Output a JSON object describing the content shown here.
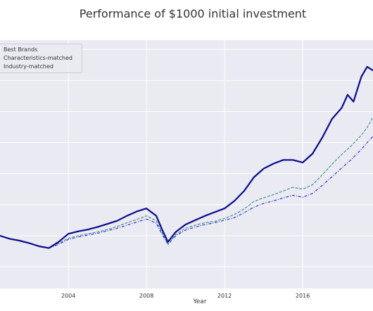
{
  "chart_data": {
    "type": "line",
    "title": "Performance of $1000 initial investment",
    "xlabel": "Year",
    "ylabel": "",
    "x_tick_labels": [
      "2004",
      "2008",
      "2012",
      "2016"
    ],
    "x_ticks": [
      2004,
      2008,
      2012,
      2016
    ],
    "xlim": [
      2000.5,
      2019.6
    ],
    "ylim": [
      150,
      4150
    ],
    "y_gridlines": [
      500,
      1000,
      1500,
      2000,
      2500,
      3000,
      3500,
      4000
    ],
    "grid": true,
    "legend_placement": "upper-left",
    "background_color": "#EAEAF2",
    "series": [
      {
        "name": "Best Brands",
        "color": "#0A0A8C",
        "style": "solid",
        "points": [
          [
            2000.5,
            1000
          ],
          [
            2001.0,
            950
          ],
          [
            2001.5,
            920
          ],
          [
            2002.0,
            880
          ],
          [
            2002.5,
            830
          ],
          [
            2003.0,
            800
          ],
          [
            2003.5,
            900
          ],
          [
            2004.0,
            1030
          ],
          [
            2004.5,
            1070
          ],
          [
            2005.0,
            1100
          ],
          [
            2005.5,
            1140
          ],
          [
            2006.0,
            1190
          ],
          [
            2006.5,
            1240
          ],
          [
            2007.0,
            1320
          ],
          [
            2007.5,
            1390
          ],
          [
            2008.0,
            1440
          ],
          [
            2008.5,
            1320
          ],
          [
            2008.8,
            1100
          ],
          [
            2009.1,
            900
          ],
          [
            2009.5,
            1060
          ],
          [
            2010.0,
            1180
          ],
          [
            2010.5,
            1250
          ],
          [
            2011.0,
            1320
          ],
          [
            2011.5,
            1380
          ],
          [
            2012.0,
            1440
          ],
          [
            2012.5,
            1560
          ],
          [
            2013.0,
            1720
          ],
          [
            2013.5,
            1940
          ],
          [
            2014.0,
            2080
          ],
          [
            2014.5,
            2160
          ],
          [
            2015.0,
            2220
          ],
          [
            2015.5,
            2220
          ],
          [
            2016.0,
            2180
          ],
          [
            2016.5,
            2320
          ],
          [
            2017.0,
            2580
          ],
          [
            2017.5,
            2880
          ],
          [
            2018.0,
            3060
          ],
          [
            2018.3,
            3270
          ],
          [
            2018.6,
            3160
          ],
          [
            2019.0,
            3560
          ],
          [
            2019.3,
            3720
          ],
          [
            2019.6,
            3660
          ]
        ]
      },
      {
        "name": "Characteristics-matched",
        "color": "#2F8A8A",
        "style": "dashed",
        "points": [
          [
            2000.5,
            1000
          ],
          [
            2001.0,
            950
          ],
          [
            2001.5,
            920
          ],
          [
            2002.0,
            880
          ],
          [
            2002.5,
            830
          ],
          [
            2003.0,
            800
          ],
          [
            2003.5,
            880
          ],
          [
            2004.0,
            960
          ],
          [
            2004.5,
            1000
          ],
          [
            2005.0,
            1030
          ],
          [
            2005.5,
            1060
          ],
          [
            2006.0,
            1100
          ],
          [
            2006.5,
            1150
          ],
          [
            2007.0,
            1210
          ],
          [
            2007.5,
            1260
          ],
          [
            2008.0,
            1320
          ],
          [
            2008.5,
            1240
          ],
          [
            2008.8,
            1050
          ],
          [
            2009.1,
            860
          ],
          [
            2009.5,
            1020
          ],
          [
            2010.0,
            1120
          ],
          [
            2010.5,
            1170
          ],
          [
            2011.0,
            1210
          ],
          [
            2011.5,
            1230
          ],
          [
            2012.0,
            1280
          ],
          [
            2012.5,
            1340
          ],
          [
            2013.0,
            1430
          ],
          [
            2013.5,
            1550
          ],
          [
            2014.0,
            1610
          ],
          [
            2014.5,
            1660
          ],
          [
            2015.0,
            1720
          ],
          [
            2015.5,
            1780
          ],
          [
            2016.0,
            1750
          ],
          [
            2016.5,
            1820
          ],
          [
            2017.0,
            1980
          ],
          [
            2017.5,
            2150
          ],
          [
            2018.0,
            2310
          ],
          [
            2018.5,
            2450
          ],
          [
            2019.0,
            2620
          ],
          [
            2019.3,
            2740
          ],
          [
            2019.6,
            2910
          ]
        ]
      },
      {
        "name": "Industry-matched",
        "color": "#2222CC",
        "style": "dashdot",
        "points": [
          [
            2000.5,
            1000
          ],
          [
            2001.0,
            950
          ],
          [
            2001.5,
            920
          ],
          [
            2002.0,
            880
          ],
          [
            2002.5,
            830
          ],
          [
            2003.0,
            800
          ],
          [
            2003.5,
            860
          ],
          [
            2004.0,
            940
          ],
          [
            2004.5,
            980
          ],
          [
            2005.0,
            1010
          ],
          [
            2005.5,
            1040
          ],
          [
            2006.0,
            1080
          ],
          [
            2006.5,
            1120
          ],
          [
            2007.0,
            1170
          ],
          [
            2007.5,
            1220
          ],
          [
            2008.0,
            1270
          ],
          [
            2008.5,
            1200
          ],
          [
            2008.8,
            1020
          ],
          [
            2009.1,
            860
          ],
          [
            2009.5,
            1000
          ],
          [
            2010.0,
            1090
          ],
          [
            2010.5,
            1140
          ],
          [
            2011.0,
            1180
          ],
          [
            2011.5,
            1210
          ],
          [
            2012.0,
            1250
          ],
          [
            2012.5,
            1290
          ],
          [
            2013.0,
            1370
          ],
          [
            2013.5,
            1460
          ],
          [
            2014.0,
            1520
          ],
          [
            2014.5,
            1560
          ],
          [
            2015.0,
            1610
          ],
          [
            2015.5,
            1650
          ],
          [
            2016.0,
            1620
          ],
          [
            2016.5,
            1680
          ],
          [
            2017.0,
            1810
          ],
          [
            2017.5,
            1950
          ],
          [
            2018.0,
            2090
          ],
          [
            2018.5,
            2230
          ],
          [
            2019.0,
            2390
          ],
          [
            2019.3,
            2500
          ],
          [
            2019.6,
            2600
          ]
        ]
      }
    ]
  }
}
